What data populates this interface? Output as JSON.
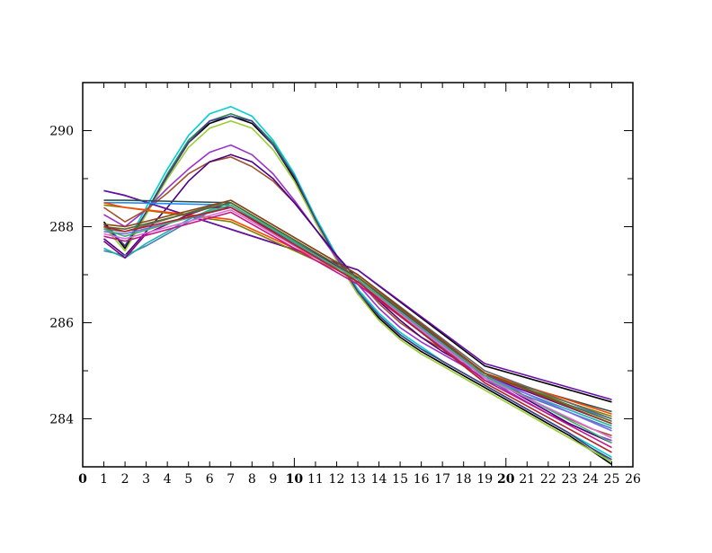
{
  "chart_data": {
    "type": "line",
    "title": "",
    "xlabel": "",
    "ylabel": "",
    "xlim": [
      0,
      26
    ],
    "ylim": [
      283,
      291
    ],
    "x_ticks": [
      0,
      1,
      2,
      3,
      4,
      5,
      6,
      7,
      8,
      9,
      10,
      11,
      12,
      13,
      14,
      15,
      16,
      17,
      18,
      19,
      20,
      21,
      22,
      23,
      24,
      25,
      26
    ],
    "x_tick_labels": [
      "0",
      "1",
      "2",
      "3",
      "4",
      "5",
      "6",
      "7",
      "8",
      "9",
      "10",
      "11",
      "12",
      "13",
      "14",
      "15",
      "16",
      "17",
      "18",
      "19",
      "20",
      "21",
      "22",
      "23",
      "24",
      "25",
      "26"
    ],
    "x_major_ticks": [
      0,
      10,
      20
    ],
    "y_ticks": [
      284,
      286,
      288,
      290
    ],
    "y_tick_labels": [
      "284",
      "286",
      "288",
      "290"
    ],
    "grid": false,
    "legend": "none",
    "series": [
      {
        "color": "#00ced1",
        "x": [
          1,
          2,
          3,
          4,
          5,
          6,
          7,
          8,
          9,
          10,
          11,
          12,
          13,
          14,
          15,
          16,
          17,
          18,
          19,
          20,
          21,
          22,
          23,
          24,
          25
        ],
        "values": [
          288.1,
          287.6,
          288.4,
          289.2,
          289.9,
          290.35,
          290.5,
          290.3,
          289.8,
          289.1,
          288.2,
          287.4,
          286.7,
          286.2,
          285.8,
          285.5,
          285.2,
          284.95,
          284.7,
          284.45,
          284.2,
          283.95,
          283.7,
          283.45,
          283.2
        ]
      },
      {
        "color": "#2e8b57",
        "x": [
          1,
          2,
          3,
          4,
          5,
          6,
          7,
          8,
          9,
          10,
          11,
          12,
          13,
          14,
          15,
          16,
          17,
          18,
          19,
          20,
          21,
          22,
          23,
          24,
          25
        ],
        "values": [
          288.0,
          287.6,
          288.3,
          289.1,
          289.8,
          290.2,
          290.35,
          290.2,
          289.75,
          289.05,
          288.15,
          287.35,
          286.65,
          286.15,
          285.75,
          285.45,
          285.2,
          284.95,
          284.7,
          284.45,
          284.2,
          283.95,
          283.7,
          283.4,
          283.1
        ]
      },
      {
        "color": "#000000",
        "x": [
          1,
          2,
          3,
          4,
          5,
          6,
          7,
          8,
          9,
          10,
          11,
          12,
          13,
          14,
          15,
          16,
          17,
          18,
          19,
          20,
          21,
          22,
          23,
          24,
          25
        ],
        "values": [
          288.1,
          287.55,
          288.3,
          289.05,
          289.75,
          290.15,
          290.3,
          290.15,
          289.7,
          289.0,
          288.1,
          287.3,
          286.6,
          286.1,
          285.7,
          285.4,
          285.15,
          284.9,
          284.65,
          284.4,
          284.15,
          283.9,
          283.65,
          283.35,
          283.05
        ]
      },
      {
        "color": "#9acd32",
        "x": [
          1,
          2,
          3,
          4,
          5,
          6,
          7,
          8,
          9,
          10,
          11,
          12,
          13,
          14,
          15,
          16,
          17,
          18,
          19,
          20,
          21,
          22,
          23,
          24,
          25
        ],
        "values": [
          288.0,
          287.5,
          288.25,
          289.0,
          289.65,
          290.05,
          290.2,
          290.05,
          289.6,
          288.95,
          288.1,
          287.3,
          286.6,
          286.05,
          285.65,
          285.35,
          285.1,
          284.85,
          284.6,
          284.35,
          284.1,
          283.85,
          283.6,
          283.35,
          283.1
        ]
      },
      {
        "color": "#483d8b",
        "x": [
          1,
          2,
          3,
          4,
          5,
          6,
          7,
          8,
          9,
          10,
          11,
          12,
          13,
          14,
          15,
          16,
          17,
          18,
          19,
          20,
          21,
          22,
          23,
          24,
          25
        ],
        "values": [
          288.05,
          287.6,
          288.3,
          289.05,
          289.75,
          290.2,
          290.3,
          290.2,
          289.7,
          289.05,
          288.15,
          287.35,
          286.65,
          286.15,
          285.75,
          285.45,
          285.2,
          284.95,
          284.7,
          284.45,
          284.2,
          283.95,
          283.7,
          283.4,
          283.15
        ]
      },
      {
        "color": "#9932cc",
        "x": [
          1,
          2,
          3,
          4,
          5,
          6,
          7,
          8,
          9,
          10,
          11,
          12,
          13,
          14,
          15,
          16,
          17,
          18,
          19,
          20,
          21,
          22,
          23,
          24,
          25
        ],
        "values": [
          288.25,
          288.0,
          288.35,
          288.8,
          289.2,
          289.55,
          289.7,
          289.5,
          289.1,
          288.55,
          287.95,
          287.35,
          286.8,
          286.3,
          285.9,
          285.6,
          285.35,
          285.1,
          284.85,
          284.6,
          284.35,
          284.1,
          283.9,
          283.7,
          283.55
        ]
      },
      {
        "color": "#a0522d",
        "x": [
          1,
          2,
          3,
          4,
          5,
          6,
          7,
          8,
          9,
          10,
          11,
          12,
          13,
          14,
          15,
          16,
          17,
          18,
          19,
          20,
          21,
          22,
          23,
          24,
          25
        ],
        "values": [
          288.4,
          288.1,
          288.35,
          288.7,
          289.1,
          289.35,
          289.45,
          289.25,
          288.95,
          288.5,
          287.95,
          287.4,
          286.9,
          286.4,
          286.0,
          285.7,
          285.45,
          285.2,
          284.95,
          284.7,
          284.45,
          284.2,
          284.0,
          283.8,
          283.65
        ]
      },
      {
        "color": "#4b0082",
        "x": [
          1,
          2,
          3,
          4,
          5,
          6,
          7,
          8,
          9,
          10,
          11,
          12,
          13,
          14,
          15,
          16,
          17,
          18,
          19,
          20,
          21,
          22,
          23,
          24,
          25
        ],
        "values": [
          287.75,
          287.4,
          287.9,
          288.4,
          288.95,
          289.35,
          289.5,
          289.35,
          289.0,
          288.5,
          287.95,
          287.4,
          286.9,
          286.45,
          286.05,
          285.7,
          285.4,
          285.15,
          284.9,
          284.65,
          284.4,
          284.15,
          283.9,
          283.7,
          283.5
        ]
      },
      {
        "color": "#000000",
        "x": [
          1,
          2,
          13,
          19,
          25
        ],
        "values": [
          288.75,
          288.65,
          287.1,
          285.1,
          284.35
        ]
      },
      {
        "color": "#6a0dad",
        "x": [
          1,
          2,
          13,
          19,
          25
        ],
        "values": [
          288.75,
          288.65,
          287.1,
          285.15,
          284.4
        ]
      },
      {
        "color": "#2f4f4f",
        "x": [
          1,
          2,
          7,
          13,
          19,
          25
        ],
        "values": [
          288.55,
          288.55,
          288.5,
          286.95,
          284.9,
          284.15
        ]
      },
      {
        "color": "#1e90ff",
        "x": [
          1,
          2,
          7,
          13,
          19,
          25
        ],
        "values": [
          288.5,
          288.5,
          288.45,
          286.9,
          284.85,
          284.0
        ]
      },
      {
        "color": "#808000",
        "x": [
          1,
          2,
          7,
          13,
          19,
          25
        ],
        "values": [
          288.45,
          288.4,
          288.1,
          286.9,
          284.9,
          284.05
        ]
      },
      {
        "color": "#ff4500",
        "x": [
          1,
          2,
          7,
          13,
          19,
          25
        ],
        "values": [
          288.5,
          288.4,
          288.15,
          286.95,
          284.95,
          284.1
        ]
      },
      {
        "color": "#4682b4",
        "x": [
          1,
          2,
          3,
          4,
          5,
          6,
          7,
          13,
          19,
          25
        ],
        "values": [
          287.5,
          287.4,
          287.6,
          287.85,
          288.1,
          288.3,
          288.45,
          286.85,
          284.8,
          283.8
        ]
      },
      {
        "color": "#20b2aa",
        "x": [
          1,
          2,
          3,
          4,
          5,
          6,
          7,
          13,
          19,
          25
        ],
        "values": [
          287.55,
          287.35,
          287.65,
          287.9,
          288.15,
          288.35,
          288.5,
          286.9,
          284.85,
          283.85
        ]
      },
      {
        "color": "#800080",
        "x": [
          1,
          2,
          3,
          4,
          5,
          6,
          7,
          13,
          19,
          25
        ],
        "values": [
          287.7,
          287.35,
          287.85,
          288.05,
          288.25,
          288.4,
          288.4,
          286.95,
          284.9,
          283.9
        ]
      },
      {
        "color": "#696969",
        "x": [
          1,
          2,
          7,
          13,
          19,
          25
        ],
        "values": [
          287.95,
          287.9,
          288.55,
          287.0,
          285.0,
          284.0
        ]
      },
      {
        "color": "#556b2f",
        "x": [
          1,
          2,
          7,
          13,
          19,
          25
        ],
        "values": [
          288.0,
          287.95,
          288.5,
          286.95,
          284.95,
          283.95
        ]
      },
      {
        "color": "#8b4513",
        "x": [
          1,
          2,
          7,
          13,
          19,
          25
        ],
        "values": [
          288.05,
          288.0,
          288.55,
          287.0,
          284.95,
          283.9
        ]
      },
      {
        "color": "#7b68ee",
        "x": [
          1,
          2,
          7,
          13,
          19,
          25
        ],
        "values": [
          287.9,
          287.85,
          288.4,
          286.85,
          284.9,
          283.75
        ]
      },
      {
        "color": "#3cb371",
        "x": [
          1,
          2,
          7,
          13,
          19,
          25
        ],
        "values": [
          287.95,
          287.8,
          288.45,
          286.9,
          284.9,
          283.5
        ]
      },
      {
        "color": "#da70d6",
        "x": [
          1,
          2,
          7,
          13,
          19,
          25
        ],
        "values": [
          287.85,
          287.75,
          288.35,
          286.85,
          284.85,
          283.6
        ]
      },
      {
        "color": "#c71585",
        "x": [
          1,
          2,
          7,
          13,
          19,
          25
        ],
        "values": [
          287.8,
          287.7,
          288.3,
          286.8,
          284.8,
          283.4
        ]
      },
      {
        "color": "#b22222",
        "x": [
          1,
          2,
          7,
          13,
          19,
          25
        ],
        "values": [
          288.0,
          287.9,
          288.4,
          286.85,
          284.75,
          283.3
        ]
      }
    ]
  }
}
